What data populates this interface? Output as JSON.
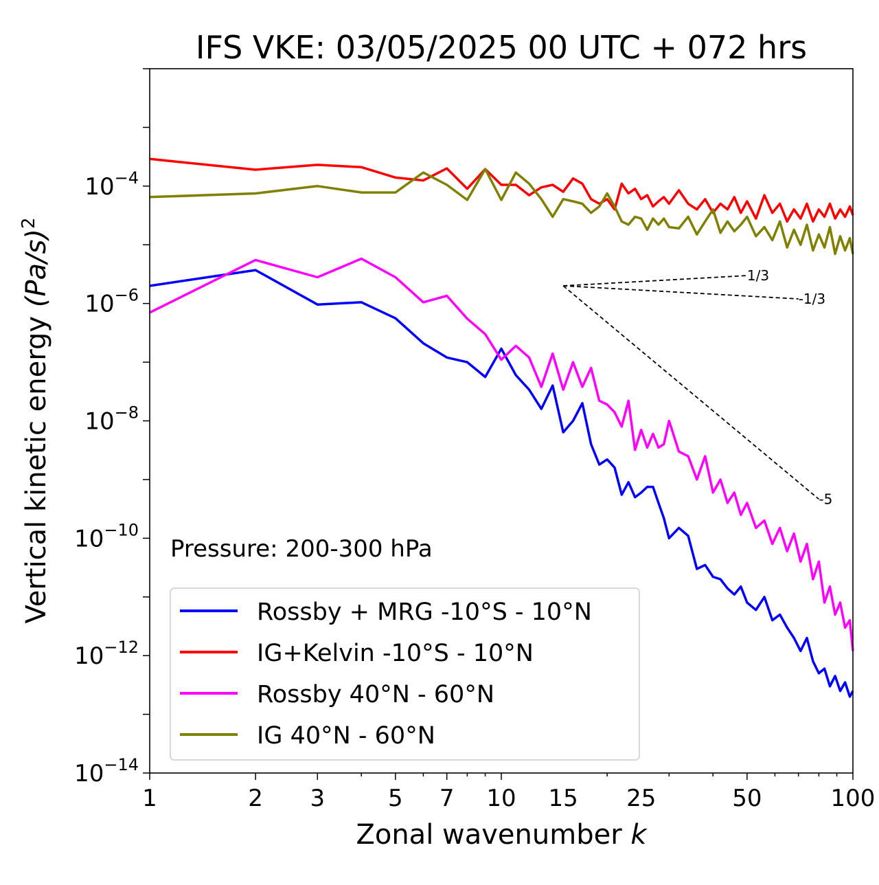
{
  "chart_data": {
    "type": "line",
    "title": "IFS VKE: 03/05/2025 00 UTC + 072 hrs",
    "xlabel": "Zonal wavenumber",
    "xlabel_symbol": "k",
    "ylabel": "Vertical kinetic energy",
    "ylabel_unit": "(Pa/s)",
    "ylabel_unit_sup": "2",
    "x_scale": "log",
    "y_scale": "log",
    "xlim": [
      1,
      100
    ],
    "ylim": [
      1e-14,
      0.01
    ],
    "x_ticks": [
      1,
      2,
      3,
      5,
      7,
      10,
      15,
      25,
      50,
      100
    ],
    "x_tick_labels": [
      "1",
      "2",
      "3",
      "5",
      "7",
      "10",
      "15",
      "25",
      "50",
      "100"
    ],
    "y_ticks": [
      {
        "value": 1e-14,
        "base": "10",
        "exp": "−14"
      },
      {
        "value": 1e-12,
        "base": "10",
        "exp": "−12"
      },
      {
        "value": 1e-10,
        "base": "10",
        "exp": "−10"
      },
      {
        "value": 1e-08,
        "base": "10",
        "exp": "−8"
      },
      {
        "value": 1e-06,
        "base": "10",
        "exp": "−6"
      },
      {
        "value": 0.0001,
        "base": "10",
        "exp": "−4"
      }
    ],
    "grid": false,
    "legend_placement": "lower-left",
    "annotation": "Pressure: 200-300 hPa",
    "series": [
      {
        "name": "Rossby + MRG -10°S - 10°N",
        "color": "#0000ff",
        "x": [
          1,
          2,
          3,
          4,
          5,
          6,
          7,
          8,
          9,
          10,
          11,
          12,
          13,
          14,
          15,
          16,
          17,
          18,
          19,
          20,
          21,
          22,
          23,
          24,
          25,
          26,
          27,
          28,
          29,
          30,
          32,
          34,
          36,
          38,
          40,
          42,
          44,
          46,
          48,
          50,
          53,
          56,
          59,
          62,
          65,
          68,
          71,
          74,
          77,
          80,
          83,
          86,
          89,
          92,
          95,
          98,
          100
        ],
        "y": [
          2e-06,
          3.7e-06,
          9.6e-07,
          1.05e-06,
          5.6e-07,
          2.1e-07,
          1.2e-07,
          1e-07,
          5.6e-08,
          1.7e-07,
          6e-08,
          3.4e-08,
          1.6e-08,
          4e-08,
          6.4e-09,
          1e-08,
          2e-08,
          4e-09,
          1.8e-09,
          2.2e-09,
          1.6e-09,
          5.5e-10,
          9e-10,
          5e-10,
          6e-10,
          7.5e-10,
          7.5e-10,
          4e-10,
          2.2e-10,
          1e-10,
          1.5e-10,
          1.1e-10,
          3e-11,
          3.5e-11,
          2.2e-11,
          2e-11,
          1.4e-11,
          1.1e-11,
          1.5e-11,
          8e-12,
          6e-12,
          1e-11,
          4e-12,
          5e-12,
          3e-12,
          2e-12,
          1.2e-12,
          2e-12,
          8e-13,
          5e-13,
          6e-13,
          3e-13,
          4.5e-13,
          2.5e-13,
          3.5e-13,
          2e-13,
          2.5e-13
        ]
      },
      {
        "name": "IG+Kelvin -10°S - 10°N",
        "color": "#ff0000",
        "x": [
          1,
          2,
          3,
          4,
          5,
          6,
          7,
          8,
          9,
          10,
          11,
          12,
          13,
          14,
          15,
          16,
          17,
          18,
          19,
          20,
          21,
          22,
          23,
          24,
          25,
          26,
          27,
          28,
          29,
          30,
          32,
          34,
          36,
          38,
          40,
          42,
          44,
          46,
          48,
          50,
          53,
          56,
          59,
          62,
          65,
          68,
          71,
          74,
          77,
          80,
          83,
          86,
          89,
          92,
          95,
          98,
          100
        ],
        "y": [
          0.00029,
          0.00019,
          0.00023,
          0.00021,
          0.00014,
          0.000125,
          0.0002,
          9e-05,
          0.000195,
          0.000105,
          0.000105,
          7e-05,
          9.5e-05,
          0.000105,
          8e-05,
          0.000135,
          0.00011,
          6e-05,
          5e-05,
          6e-05,
          4e-05,
          0.00011,
          7.5e-05,
          9e-05,
          6e-05,
          7e-05,
          4.5e-05,
          5.5e-05,
          6.5e-05,
          5e-05,
          8.5e-05,
          5e-05,
          4e-05,
          6e-05,
          3.5e-05,
          5e-05,
          4e-05,
          6.5e-05,
          3.5e-05,
          5.5e-05,
          2.8e-05,
          7e-05,
          3.5e-05,
          5e-05,
          2.5e-05,
          4e-05,
          2.8e-05,
          5e-05,
          2.5e-05,
          4e-05,
          3e-05,
          5e-05,
          2.8e-05,
          4e-05,
          3e-05,
          4.5e-05,
          3.2e-05
        ]
      },
      {
        "name": "Rossby 40°N - 60°N",
        "color": "#ff00ff",
        "x": [
          1,
          2,
          3,
          4,
          5,
          6,
          7,
          8,
          9,
          10,
          11,
          12,
          13,
          14,
          15,
          16,
          17,
          18,
          19,
          20,
          21,
          22,
          23,
          24,
          25,
          26,
          27,
          28,
          29,
          30,
          32,
          34,
          36,
          38,
          40,
          42,
          44,
          46,
          48,
          50,
          53,
          56,
          59,
          62,
          65,
          68,
          71,
          74,
          77,
          80,
          83,
          86,
          89,
          92,
          95,
          98,
          100
        ],
        "y": [
          7e-07,
          5.5e-06,
          2.8e-06,
          5.8e-06,
          2.8e-06,
          1.05e-06,
          1.35e-06,
          5.5e-07,
          3e-07,
          1.1e-07,
          1.9e-07,
          1.2e-07,
          3.8e-08,
          1.4e-07,
          3.4e-08,
          1e-07,
          3.8e-08,
          8e-08,
          2.2e-08,
          1.9e-08,
          1.4e-08,
          8e-09,
          2.2e-08,
          3.2e-09,
          7e-09,
          3.5e-09,
          6e-09,
          3.5e-09,
          4e-09,
          1e-08,
          3e-09,
          2.5e-09,
          1e-09,
          2.5e-09,
          6e-10,
          1e-09,
          4e-10,
          6e-10,
          2.5e-10,
          4e-10,
          1.5e-10,
          2e-10,
          8e-11,
          1.5e-10,
          6e-11,
          1.2e-10,
          4e-11,
          8e-11,
          2e-11,
          4e-11,
          8e-12,
          1.5e-11,
          5e-12,
          8e-12,
          3e-12,
          4e-12,
          1.2e-12
        ]
      },
      {
        "name": "IG 40°N - 60°N",
        "color": "#808000",
        "x": [
          1,
          2,
          3,
          4,
          5,
          6,
          7,
          8,
          9,
          10,
          11,
          12,
          13,
          14,
          15,
          16,
          17,
          18,
          19,
          20,
          21,
          22,
          23,
          24,
          25,
          26,
          27,
          28,
          29,
          30,
          32,
          34,
          36,
          38,
          40,
          42,
          44,
          46,
          48,
          50,
          53,
          56,
          59,
          62,
          65,
          68,
          71,
          74,
          77,
          80,
          83,
          86,
          89,
          92,
          95,
          98,
          100
        ],
        "y": [
          6.5e-05,
          7.5e-05,
          0.0001,
          7.8e-05,
          7.8e-05,
          0.00017,
          0.000105,
          5.8e-05,
          0.000195,
          5.8e-05,
          0.00017,
          0.00011,
          6e-05,
          3e-05,
          6e-05,
          5.5e-05,
          5e-05,
          3.5e-05,
          4.5e-05,
          7.5e-05,
          4.5e-05,
          2.5e-05,
          2.2e-05,
          3e-05,
          2.8e-05,
          1.8e-05,
          2.8e-05,
          2.2e-05,
          2.8e-05,
          2e-05,
          1.9e-05,
          3e-05,
          1.5e-05,
          2.5e-05,
          4e-05,
          1.6e-05,
          2.5e-05,
          1.7e-05,
          2.2e-05,
          3e-05,
          1.4e-05,
          2e-05,
          1.2e-05,
          2.5e-05,
          9e-06,
          1.8e-05,
          1e-05,
          2.2e-05,
          8e-06,
          1.5e-05,
          9e-06,
          2e-05,
          7e-06,
          1.4e-05,
          8e-06,
          1.3e-05,
          7e-06
        ]
      }
    ],
    "reference_slopes": [
      {
        "label": "1/3",
        "slope": 0.3333,
        "x0": 15,
        "y0": 2e-06,
        "x1": 50
      },
      {
        "label": "-1/3",
        "slope": -0.3333,
        "x0": 15,
        "y0": 2e-06,
        "x1": 70
      },
      {
        "label": "-5",
        "slope": -5,
        "x0": 15,
        "y0": 2e-06,
        "x1": 80
      }
    ]
  }
}
